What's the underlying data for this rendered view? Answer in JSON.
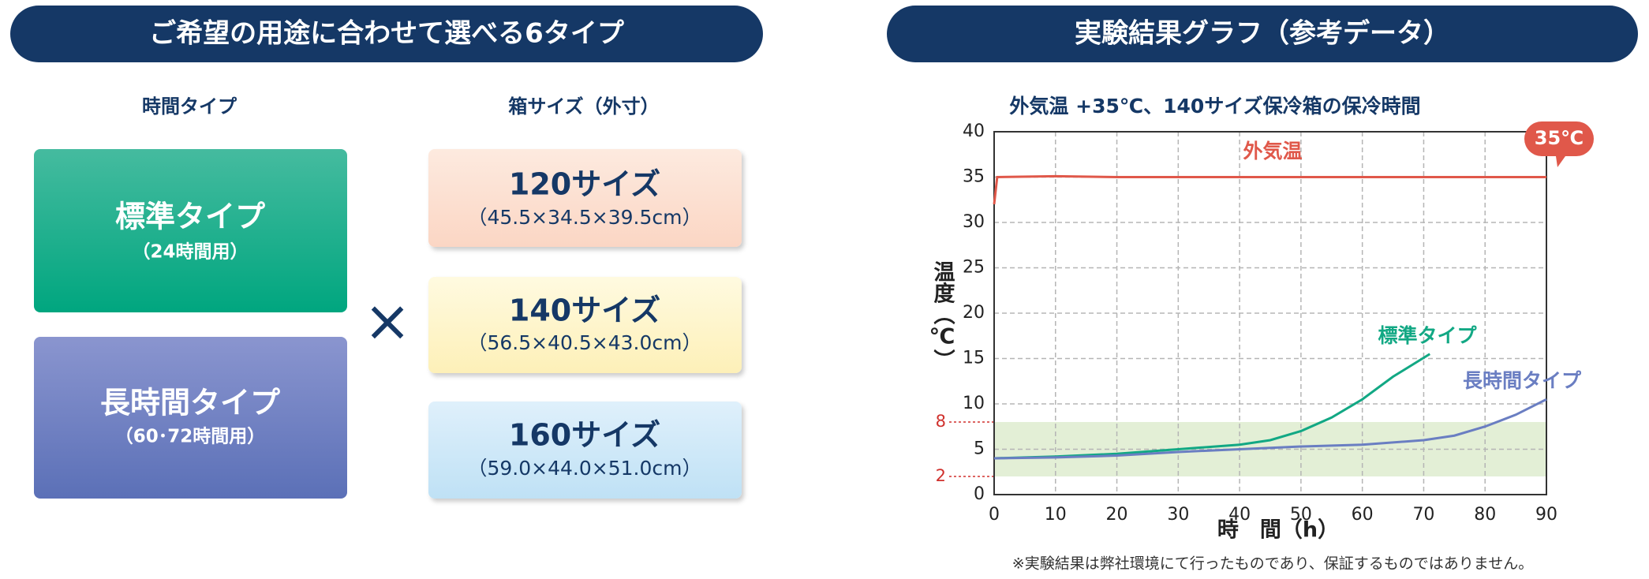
{
  "left_panel": {
    "header": "ご希望の用途に合わせて選べる6タイプ",
    "time_heading": "時間タイプ",
    "size_heading": "箱サイズ（外寸）",
    "times_sign": "×",
    "time_types": [
      {
        "name": "標準タイプ",
        "note": "（24時間用）"
      },
      {
        "name": "長時間タイプ",
        "note": "（60･72時間用）"
      }
    ],
    "sizes": [
      {
        "name": "120サイズ",
        "dims": "（45.5×34.5×39.5cm）"
      },
      {
        "name": "140サイズ",
        "dims": "（56.5×40.5×43.0cm）"
      },
      {
        "name": "160サイズ",
        "dims": "（59.0×44.0×51.0cm）"
      }
    ]
  },
  "chart_data": {
    "type": "line",
    "header": "実験結果グラフ（参考データ）",
    "title": "外気温 +35℃、140サイズ保冷箱の保冷時間",
    "y_label": "温度（℃）",
    "x_label": "時　間（h）",
    "annotation": "35℃",
    "footnote": "※実験結果は弊社環境にて行ったものであり、保証するものではありません。",
    "xlim": [
      0,
      90
    ],
    "xticks": [
      0,
      10,
      20,
      30,
      40,
      50,
      60,
      70,
      80,
      90
    ],
    "ylim": [
      0,
      40
    ],
    "yticks": [
      0,
      5,
      10,
      15,
      20,
      25,
      30,
      35,
      40
    ],
    "grid": true,
    "highlight_band": {
      "range": [
        2,
        8
      ],
      "color": "#e3efd6",
      "label_color": "#d0312d"
    },
    "series": [
      {
        "name": "外気温",
        "color": "#e0584a",
        "x": [
          0,
          0.5,
          10,
          20,
          30,
          40,
          50,
          60,
          70,
          80,
          90
        ],
        "values": [
          32,
          35,
          35.1,
          35,
          35,
          35,
          35,
          35,
          35,
          35,
          35
        ]
      },
      {
        "name": "標準タイプ",
        "color": "#12a884",
        "x": [
          0,
          10,
          20,
          30,
          40,
          45,
          50,
          55,
          60,
          65,
          71
        ],
        "values": [
          4,
          4.2,
          4.5,
          5,
          5.5,
          6,
          7,
          8.5,
          10.5,
          13,
          15.5
        ]
      },
      {
        "name": "長時間タイプ",
        "color": "#6a7ec2",
        "x": [
          0,
          10,
          20,
          30,
          40,
          50,
          60,
          70,
          75,
          80,
          85,
          90
        ],
        "values": [
          4,
          4.1,
          4.3,
          4.7,
          5,
          5.3,
          5.5,
          6,
          6.5,
          7.5,
          8.8,
          10.5
        ]
      }
    ]
  }
}
